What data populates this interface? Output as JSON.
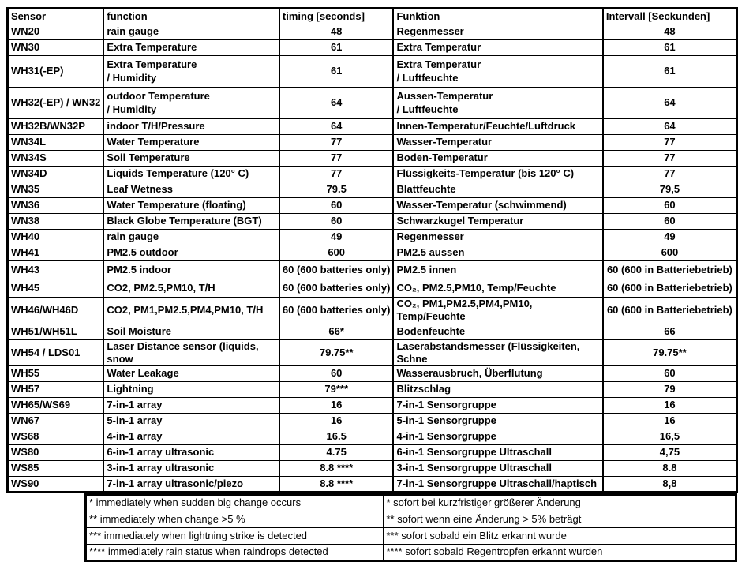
{
  "table": {
    "headers": {
      "sensor": "Sensor",
      "function_en": "function",
      "timing_en": "timing [seconds]",
      "function_de": "Funktion",
      "timing_de": "Intervall [Seckunden]"
    },
    "rows": [
      {
        "sensor": "WN20",
        "fn_en": "rain gauge",
        "t_en": "48",
        "fn_de": "Regenmesser",
        "t_de": "48"
      },
      {
        "sensor": "WN30",
        "fn_en": "Extra Temperature",
        "t_en": "61",
        "fn_de": "Extra Temperatur",
        "t_de": "61"
      },
      {
        "sensor": "WH31(-EP)",
        "fn_en": "Extra Temperature\n/ Humidity",
        "t_en": "61",
        "fn_de": "Extra Temperatur\n/ Luftfeuchte",
        "t_de": "61",
        "h": "h40"
      },
      {
        "sensor": "WH32(-EP) /\nWN32",
        "fn_en": "outdoor Temperature\n/ Humidity",
        "t_en": "64",
        "fn_de": "Aussen-Temperatur\n/ Luftfeuchte",
        "t_de": "64",
        "h": "h40"
      },
      {
        "sensor": "WH32B/WN32P",
        "fn_en": "indoor T/H/Pressure",
        "t_en": "64",
        "fn_de": "Innen-Temperatur/Feuchte/Luftdruck",
        "t_de": "64"
      },
      {
        "sensor": "WN34L",
        "fn_en": "Water Temperature",
        "t_en": "77",
        "fn_de": "Wasser-Temperatur",
        "t_de": "77"
      },
      {
        "sensor": "WN34S",
        "fn_en": "Soil Temperature",
        "t_en": "77",
        "fn_de": "Boden-Temperatur",
        "t_de": "77"
      },
      {
        "sensor": "WN34D",
        "fn_en": "Liquids Temperature (120° C)",
        "t_en": "77",
        "fn_de": "Flüssigkeits-Temperatur (bis 120° C)",
        "t_de": "77"
      },
      {
        "sensor": "WN35",
        "fn_en": "Leaf Wetness",
        "t_en": "79.5",
        "fn_de": "Blattfeuchte",
        "t_de": "79,5"
      },
      {
        "sensor": "WN36",
        "fn_en": "Water Temperature (floating)",
        "t_en": "60",
        "fn_de": "Wasser-Temperatur (schwimmend)",
        "t_de": "60"
      },
      {
        "sensor": "WN38",
        "fn_en": "Black Globe Temperature (BGT)",
        "t_en": "60",
        "fn_de": "Schwarzkugel Temperatur",
        "t_de": "60"
      },
      {
        "sensor": "WH40",
        "fn_en": "rain gauge",
        "t_en": "49",
        "fn_de": "Regenmesser",
        "t_de": "49"
      },
      {
        "sensor": "WH41",
        "fn_en": "PM2.5 outdoor",
        "t_en": "600",
        "fn_de": "PM2.5 aussen",
        "t_de": "600"
      },
      {
        "sensor": "WH43",
        "fn_en": "PM2.5 indoor",
        "t_en": "60 (600 batteries only)",
        "fn_de": "PM2.5 innen",
        "t_de": "60 (600 in Batteriebetrieb)",
        "h": "h23"
      },
      {
        "sensor": "WH45",
        "fn_en": "CO2, PM2.5,PM10, T/H",
        "t_en": "60 (600 batteries only)",
        "fn_de": "CO₂, PM2.5,PM10, Temp/Feuchte",
        "t_de": "60 (600 in Batteriebetrieb)",
        "h": "h23"
      },
      {
        "sensor": "WH46/WH46D",
        "fn_en": "CO2, PM1,PM2.5,PM4,PM10, T/H",
        "t_en": "60 (600 batteries only)",
        "fn_de": "CO₂, PM1,PM2.5,PM4,PM10, Temp/Feuchte",
        "t_de": "60 (600 in Batteriebetrieb)",
        "h": "h25"
      },
      {
        "sensor": "WH51/WH51L",
        "fn_en": "Soil Moisture",
        "t_en": "66*",
        "fn_de": "Bodenfeuchte",
        "t_de": "66"
      },
      {
        "sensor": "WH54 / LDS01",
        "fn_en": "Laser Distance sensor (liquids, snow",
        "t_en": "79.75**",
        "fn_de": "Laserabstandsmesser (Flüssigkeiten, Schne",
        "t_de": "79.75**"
      },
      {
        "sensor": "WH55",
        "fn_en": "Water Leakage",
        "t_en": "60",
        "fn_de": "Wasserausbruch, Überflutung",
        "t_de": "60"
      },
      {
        "sensor": "WH57",
        "fn_en": "Lightning",
        "t_en": "79***",
        "fn_de": "Blitzschlag",
        "t_de": "79"
      },
      {
        "sensor": "WH65/WS69",
        "fn_en": "7-in-1 array",
        "t_en": "16",
        "fn_de": "7-in-1 Sensorgruppe",
        "t_de": "16"
      },
      {
        "sensor": "WN67",
        "fn_en": "5-in-1 array",
        "t_en": "16",
        "fn_de": "5-in-1 Sensorgruppe",
        "t_de": "16"
      },
      {
        "sensor": "WS68",
        "fn_en": "4-in-1 array",
        "t_en": "16.5",
        "fn_de": "4-in-1 Sensorgruppe",
        "t_de": "16,5"
      },
      {
        "sensor": "WS80",
        "fn_en": "6-in-1 array ultrasonic",
        "t_en": "4.75",
        "fn_de": "6-in-1 Sensorgruppe Ultraschall",
        "t_de": "4,75"
      },
      {
        "sensor": "WS85",
        "fn_en": "3-in-1 array ultrasonic",
        "t_en": "8.8 ****",
        "fn_de": "3-in-1 Sensorgruppe Ultraschall",
        "t_de": "8.8"
      },
      {
        "sensor": "WS90",
        "fn_en": "7-in-1 array ultrasonic/piezo",
        "t_en": "8.8 ****",
        "fn_de": "7-in-1 Sensorgruppe Ultraschall/haptisch",
        "t_de": "8,8"
      }
    ],
    "footnotes": [
      {
        "en": "* immediately when  sudden big change occurs",
        "de": "* sofort bei kurzfristiger größerer Änderung"
      },
      {
        "en": "** immediately when change >5 %",
        "de": "** sofort wenn eine Änderung > 5% beträgt"
      },
      {
        "en": "*** immediately when lightning strike is detected",
        "de": "*** sofort sobald ein Blitz erkannt wurde"
      },
      {
        "en": "**** immediately rain status when raindrops detected",
        "de": "**** sofort sobald Regentropfen erkannt wurden"
      }
    ],
    "colors": {
      "border": "#000000",
      "text": "#000000",
      "background": "#ffffff"
    }
  }
}
